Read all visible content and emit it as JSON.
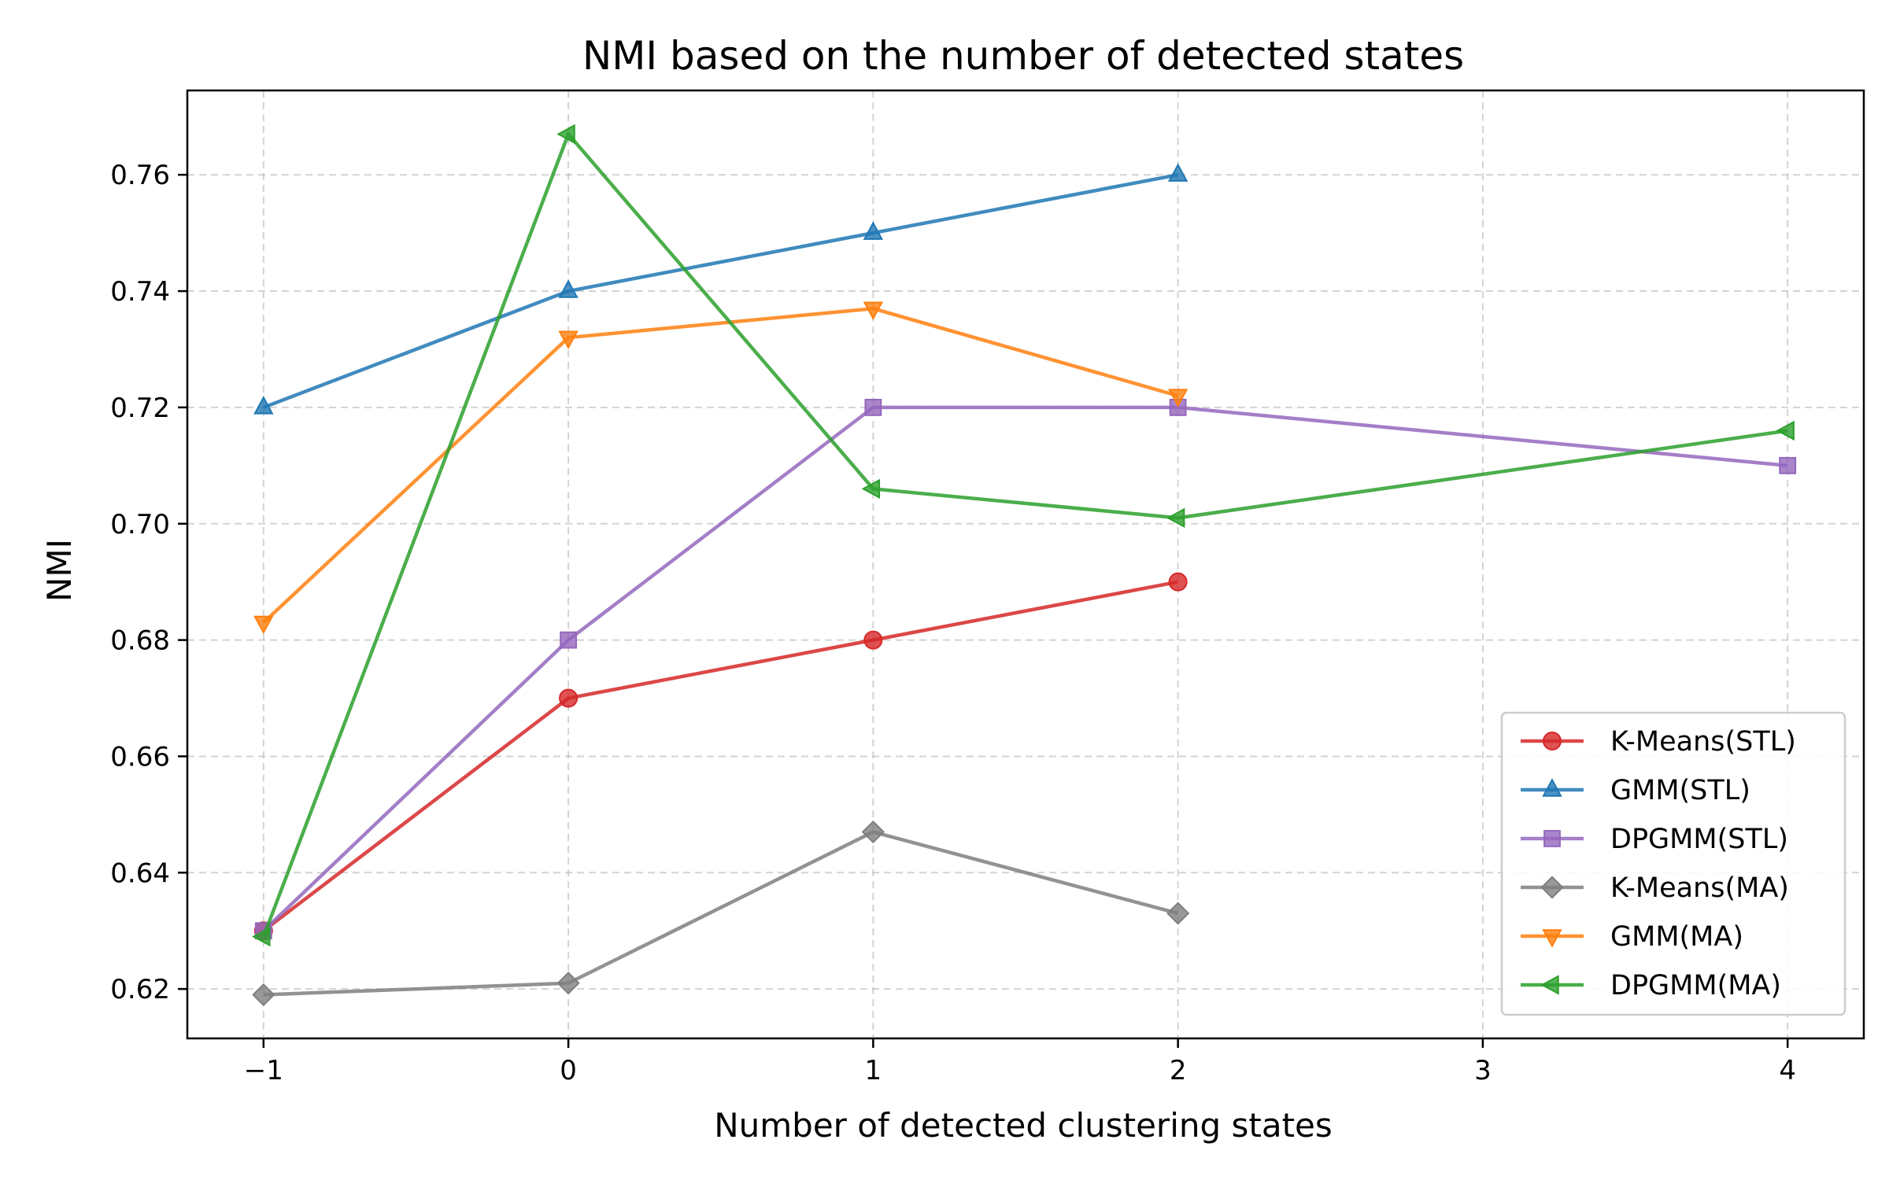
{
  "chart_data": {
    "type": "line",
    "title": "NMI based on the number of detected states",
    "xlabel": "Number of detected clustering states",
    "ylabel": "NMI",
    "xlim": [
      -1.25,
      4.25
    ],
    "ylim": [
      0.6115,
      0.7745
    ],
    "xticks": [
      -1,
      0,
      1,
      2,
      3,
      4
    ],
    "xtick_labels": [
      "−1",
      "0",
      "1",
      "2",
      "3",
      "4"
    ],
    "yticks": [
      0.62,
      0.64,
      0.66,
      0.68,
      0.7,
      0.72,
      0.74,
      0.76
    ],
    "ytick_labels": [
      "0.62",
      "0.64",
      "0.66",
      "0.68",
      "0.70",
      "0.72",
      "0.74",
      "0.76"
    ],
    "grid": true,
    "legend_position": "lower-right",
    "series": [
      {
        "name": "K-Means(STL)",
        "color": "#d62728",
        "marker": "circle",
        "x": [
          -1,
          0,
          1,
          2
        ],
        "y": [
          0.63,
          0.67,
          0.68,
          0.69
        ]
      },
      {
        "name": "GMM(STL)",
        "color": "#1f77b4",
        "marker": "triangle-up",
        "x": [
          -1,
          0,
          1,
          2
        ],
        "y": [
          0.72,
          0.74,
          0.75,
          0.76
        ]
      },
      {
        "name": "DPGMM(STL)",
        "color": "#9467bd",
        "marker": "square",
        "x": [
          -1,
          0,
          1,
          2,
          4
        ],
        "y": [
          0.63,
          0.68,
          0.72,
          0.72,
          0.71
        ]
      },
      {
        "name": "K-Means(MA)",
        "color": "#7f7f7f",
        "marker": "diamond",
        "x": [
          -1,
          0,
          1,
          2
        ],
        "y": [
          0.619,
          0.621,
          0.647,
          0.633
        ]
      },
      {
        "name": "GMM(MA)",
        "color": "#ff7f0e",
        "marker": "triangle-down",
        "x": [
          -1,
          0,
          1,
          2
        ],
        "y": [
          0.683,
          0.732,
          0.737,
          0.722
        ]
      },
      {
        "name": "DPGMM(MA)",
        "color": "#2ca02c",
        "marker": "triangle-left",
        "x": [
          -1,
          0,
          1,
          2,
          4
        ],
        "y": [
          0.629,
          0.767,
          0.706,
          0.701,
          0.716
        ]
      }
    ]
  }
}
